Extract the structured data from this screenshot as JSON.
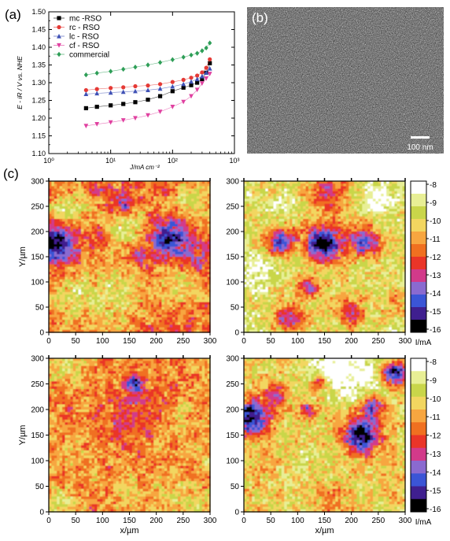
{
  "panel_labels": {
    "a": "(a)",
    "b": "(b)",
    "c": "(c)"
  },
  "chart_data": [
    {
      "type": "scatter",
      "panel": "a",
      "xlabel": "J/mA cm⁻²",
      "ylabel": "E - iR / V vs. NHE",
      "x_scale": "log",
      "xlim": [
        1,
        1000
      ],
      "ylim": [
        1.1,
        1.5
      ],
      "x_ticks": [
        {
          "v": 1,
          "label": "10⁰"
        },
        {
          "v": 10,
          "label": "10¹"
        },
        {
          "v": 100,
          "label": "10²"
        },
        {
          "v": 1000,
          "label": "10³"
        }
      ],
      "y_ticks": [
        "1.10",
        "1.15",
        "1.20",
        "1.25",
        "1.30",
        "1.35",
        "1.40",
        "1.45",
        "1.50"
      ],
      "legend_position": "top-left",
      "series": [
        {
          "name": "mc -RSO",
          "color": "#000000",
          "marker": "square",
          "x": [
            4,
            6,
            10,
            16,
            25,
            40,
            63,
            100,
            150,
            200,
            250,
            300,
            350,
            400
          ],
          "y": [
            1.228,
            1.232,
            1.236,
            1.24,
            1.245,
            1.252,
            1.262,
            1.276,
            1.286,
            1.293,
            1.3,
            1.31,
            1.328,
            1.355
          ]
        },
        {
          "name": "rc - RSO",
          "color": "#e53935",
          "marker": "circle",
          "x": [
            4,
            6,
            10,
            16,
            25,
            40,
            63,
            100,
            150,
            200,
            250,
            300,
            350,
            400
          ],
          "y": [
            1.279,
            1.282,
            1.285,
            1.287,
            1.29,
            1.292,
            1.296,
            1.302,
            1.308,
            1.314,
            1.32,
            1.329,
            1.342,
            1.366
          ]
        },
        {
          "name": "lc - RSO",
          "color": "#3f51b5",
          "marker": "triangle-up",
          "x": [
            4,
            6,
            10,
            16,
            25,
            40,
            63,
            100,
            150,
            200,
            250,
            300,
            350,
            400
          ],
          "y": [
            1.268,
            1.27,
            1.272,
            1.274,
            1.276,
            1.279,
            1.283,
            1.289,
            1.296,
            1.303,
            1.31,
            1.318,
            1.328,
            1.34
          ]
        },
        {
          "name": "cf - RSO",
          "color": "#e040a0",
          "marker": "triangle-down",
          "x": [
            4,
            6,
            10,
            16,
            25,
            40,
            63,
            100,
            150,
            200,
            250,
            300,
            350,
            400
          ],
          "y": [
            1.178,
            1.183,
            1.188,
            1.194,
            1.2,
            1.208,
            1.218,
            1.232,
            1.246,
            1.262,
            1.28,
            1.298,
            1.312,
            1.325
          ]
        },
        {
          "name": "commercial",
          "color": "#2e9e57",
          "marker": "diamond",
          "x": [
            4,
            6,
            10,
            16,
            25,
            40,
            63,
            100,
            150,
            200,
            250,
            300,
            350,
            400
          ],
          "y": [
            1.322,
            1.327,
            1.332,
            1.338,
            1.344,
            1.35,
            1.357,
            1.365,
            1.372,
            1.378,
            1.383,
            1.39,
            1.398,
            1.412
          ]
        }
      ]
    },
    {
      "type": "heatmap",
      "panel": "c",
      "grid": "2x2",
      "xlabel": "x/µm",
      "ylabel": "Y/µm",
      "xlim": [
        0,
        300
      ],
      "ylim": [
        0,
        300
      ],
      "ticks": [
        0,
        50,
        100,
        150,
        200,
        250,
        300
      ],
      "colorbar_label": "I/mA",
      "colorbar_ticks": [
        "-8",
        "-9",
        "-10",
        "-11",
        "-12",
        "-13",
        "-14",
        "-15",
        "-16"
      ],
      "colorbar_range": [
        -16,
        -8
      ],
      "colorscale": [
        "#000000",
        "#3f1f8f",
        "#3b55d6",
        "#8a6ad0",
        "#d23a8a",
        "#ea3528",
        "#f07020",
        "#f7a640",
        "#f2d660",
        "#c9d64a",
        "#e8ef95",
        "#ffffff"
      ],
      "maps": [
        {
          "id": "top-left",
          "base": -11.6,
          "features": [
            {
              "x": 5,
              "y": 180,
              "r": 42,
              "v": -16
            },
            {
              "x": 225,
              "y": 185,
              "r": 38,
              "v": -15
            },
            {
              "x": 140,
              "y": 255,
              "r": 22,
              "v": -14.5
            },
            {
              "x": 90,
              "y": 195,
              "r": 25,
              "v": -13
            },
            {
              "x": 165,
              "y": 150,
              "r": 18,
              "v": -14
            },
            {
              "x": 280,
              "y": 140,
              "r": 30,
              "v": -13
            },
            {
              "x": 35,
              "y": 240,
              "r": 40,
              "v": -9.3
            },
            {
              "x": 140,
              "y": 210,
              "r": 45,
              "v": -9.4
            },
            {
              "x": 270,
              "y": 260,
              "r": 35,
              "v": -9.5
            },
            {
              "x": 120,
              "y": 75,
              "r": 60,
              "v": -9.8
            },
            {
              "x": 250,
              "y": 95,
              "r": 40,
              "v": -10
            },
            {
              "x": 40,
              "y": 70,
              "r": 45,
              "v": -10.2
            },
            {
              "x": 150,
              "y": 20,
              "r": 80,
              "v": -11.6
            },
            {
              "x": 95,
              "y": 280,
              "r": 20,
              "v": -13
            }
          ]
        },
        {
          "id": "top-right",
          "base": -9.9,
          "features": [
            {
              "x": 150,
              "y": 175,
              "r": 35,
              "v": -16
            },
            {
              "x": 70,
              "y": 180,
              "r": 25,
              "v": -15
            },
            {
              "x": 225,
              "y": 180,
              "r": 28,
              "v": -14.5
            },
            {
              "x": 160,
              "y": 275,
              "r": 40,
              "v": -12.5
            },
            {
              "x": 120,
              "y": 90,
              "r": 20,
              "v": -13.5
            },
            {
              "x": 85,
              "y": 30,
              "r": 25,
              "v": -13.5
            },
            {
              "x": 200,
              "y": 40,
              "r": 25,
              "v": -13
            },
            {
              "x": 250,
              "y": 260,
              "r": 35,
              "v": -8.2
            },
            {
              "x": 70,
              "y": 250,
              "r": 25,
              "v": -8.5
            },
            {
              "x": 20,
              "y": 120,
              "r": 30,
              "v": -8.5
            },
            {
              "x": 150,
              "y": 100,
              "r": 35,
              "v": -10
            },
            {
              "x": 280,
              "y": 60,
              "r": 20,
              "v": -11.5
            }
          ]
        },
        {
          "id": "bottom-left",
          "base": -11.4,
          "features": [
            {
              "x": 160,
              "y": 250,
              "r": 15,
              "v": -15.5
            },
            {
              "x": 170,
              "y": 200,
              "r": 45,
              "v": -12.3
            },
            {
              "x": 120,
              "y": 150,
              "r": 40,
              "v": -12
            },
            {
              "x": 40,
              "y": 280,
              "r": 30,
              "v": -9.8
            },
            {
              "x": 20,
              "y": 20,
              "r": 30,
              "v": -9.8
            },
            {
              "x": 260,
              "y": 30,
              "r": 50,
              "v": -10.2
            },
            {
              "x": 150,
              "y": 40,
              "r": 35,
              "v": -10.4
            },
            {
              "x": 260,
              "y": 180,
              "r": 35,
              "v": -10.6
            },
            {
              "x": 290,
              "y": 110,
              "r": 25,
              "v": -10.4
            },
            {
              "x": 60,
              "y": 120,
              "r": 25,
              "v": -10.8
            }
          ]
        },
        {
          "id": "bottom-right",
          "base": -10.2,
          "features": [
            {
              "x": 15,
              "y": 185,
              "r": 32,
              "v": -16
            },
            {
              "x": 220,
              "y": 150,
              "r": 35,
              "v": -16
            },
            {
              "x": 280,
              "y": 270,
              "r": 22,
              "v": -15.5
            },
            {
              "x": 240,
              "y": 205,
              "r": 20,
              "v": -14
            },
            {
              "x": 140,
              "y": 255,
              "r": 15,
              "v": -13.5
            },
            {
              "x": 60,
              "y": 225,
              "r": 20,
              "v": -13.5
            },
            {
              "x": 120,
              "y": 200,
              "r": 15,
              "v": -13
            },
            {
              "x": 210,
              "y": 270,
              "r": 50,
              "v": -8
            },
            {
              "x": 155,
              "y": 280,
              "r": 40,
              "v": -8.2
            },
            {
              "x": 110,
              "y": 100,
              "r": 40,
              "v": -9.6
            },
            {
              "x": 40,
              "y": 90,
              "r": 40,
              "v": -10.8
            },
            {
              "x": 270,
              "y": 80,
              "r": 30,
              "v": -10.6
            },
            {
              "x": 165,
              "y": 25,
              "r": 40,
              "v": -11.2
            }
          ]
        }
      ]
    }
  ],
  "sem": {
    "scale_label": "100 nm"
  }
}
